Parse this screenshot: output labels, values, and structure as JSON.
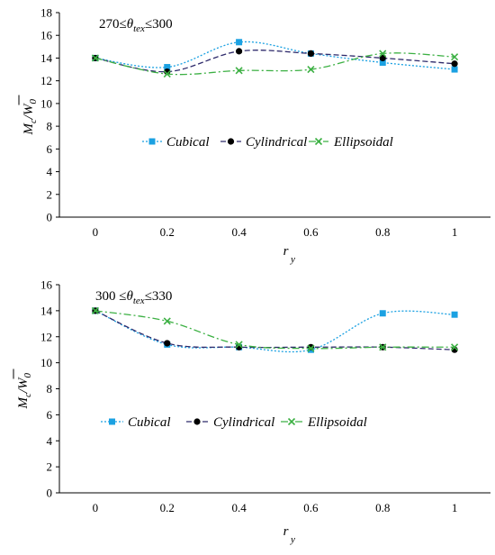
{
  "chart_data": [
    {
      "type": "line",
      "annotation": {
        "pre": "270≤",
        "theta": "θ",
        "sub": "tex",
        "post": "≤300"
      },
      "xlabel": {
        "main": "r",
        "sub": "y"
      },
      "ylabel": {
        "m": "M",
        "c": "c",
        "slash": "/",
        "w": "W",
        "zero": "0"
      },
      "xlim": [
        -0.1,
        1.1
      ],
      "ylim": [
        0,
        18
      ],
      "x_ticks": [
        0,
        0.2,
        0.4,
        0.6,
        0.8,
        1
      ],
      "x_tick_labels": [
        "0",
        "0.2",
        "0.4",
        "0.6",
        "0.8",
        "1"
      ],
      "y_ticks": [
        0,
        2,
        4,
        6,
        8,
        10,
        12,
        14,
        16,
        18
      ],
      "y_tick_labels": [
        "0",
        "2",
        "4",
        "6",
        "8",
        "10",
        "12",
        "14",
        "16",
        "18"
      ],
      "x": [
        0,
        0.2,
        0.4,
        0.6,
        0.8,
        1
      ],
      "legend_position": "middle",
      "series": [
        {
          "name": "Cubical",
          "values": [
            14.0,
            13.2,
            15.4,
            14.4,
            13.6,
            13.0
          ],
          "color": "#1ba1e2",
          "marker": "square",
          "dash": "2,2"
        },
        {
          "name": "Cylindrical",
          "values": [
            14.0,
            12.8,
            14.6,
            14.4,
            14.0,
            13.5
          ],
          "color": "#2e2a6b",
          "marker": "circle",
          "dash": "6,3"
        },
        {
          "name": "Ellipsoidal",
          "values": [
            14.0,
            12.6,
            12.9,
            13.0,
            14.4,
            14.1
          ],
          "color": "#3cb043",
          "marker": "cross",
          "dash": "8,3,2,3"
        }
      ]
    },
    {
      "type": "line",
      "annotation": {
        "pre": "300 ≤",
        "theta": "θ",
        "sub": "tex",
        "post": "≤330"
      },
      "xlabel": {
        "main": "r",
        "sub": "y"
      },
      "ylabel": {
        "m": "M",
        "c": "c",
        "slash": "/",
        "w": "W",
        "zero": "0"
      },
      "xlim": [
        -0.1,
        1.1
      ],
      "ylim": [
        0,
        16
      ],
      "x_ticks": [
        0,
        0.2,
        0.4,
        0.6,
        0.8,
        1
      ],
      "x_tick_labels": [
        "0",
        "0.2",
        "0.4",
        "0.6",
        "0.8",
        "1"
      ],
      "y_ticks": [
        0,
        2,
        4,
        6,
        8,
        10,
        12,
        14,
        16
      ],
      "y_tick_labels": [
        "0",
        "2",
        "4",
        "6",
        "8",
        "10",
        "12",
        "14",
        "16"
      ],
      "x": [
        0,
        0.2,
        0.4,
        0.6,
        0.8,
        1
      ],
      "legend_position": "lower-middle",
      "series": [
        {
          "name": "Cubical",
          "values": [
            14.0,
            11.4,
            11.2,
            11.0,
            13.8,
            13.7
          ],
          "color": "#1ba1e2",
          "marker": "square",
          "dash": "2,2"
        },
        {
          "name": "Cylindrical",
          "values": [
            14.0,
            11.5,
            11.2,
            11.2,
            11.2,
            11.0
          ],
          "color": "#2e2a6b",
          "marker": "circle",
          "dash": "6,3"
        },
        {
          "name": "Ellipsoidal",
          "values": [
            14.0,
            13.2,
            11.4,
            11.1,
            11.2,
            11.2
          ],
          "color": "#3cb043",
          "marker": "cross",
          "dash": "8,3,2,3"
        }
      ]
    }
  ]
}
